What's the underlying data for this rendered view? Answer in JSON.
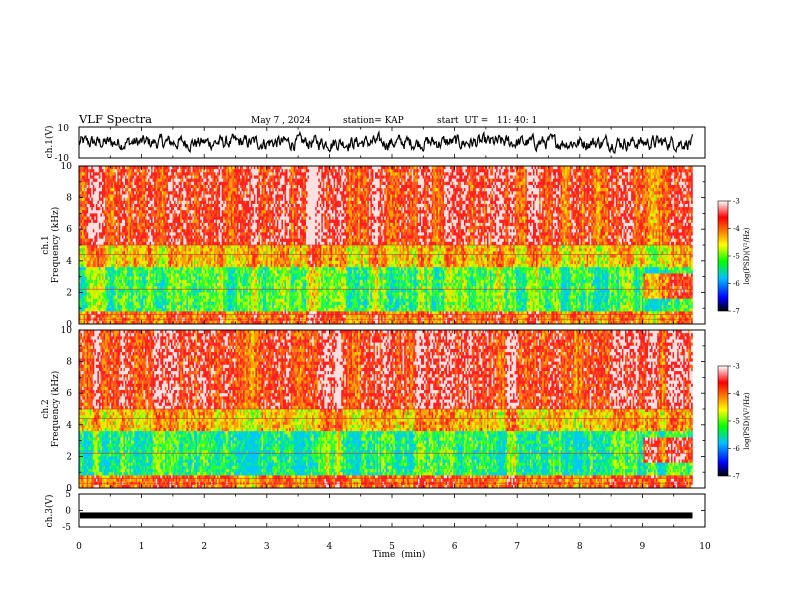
{
  "header": {
    "title": "VLF Spectra",
    "date": "May 7 , 2024",
    "station": "station= KAP",
    "start": "start  UT =   11: 40: 1"
  },
  "chart_data": [
    {
      "type": "line",
      "ylabel": "ch.1(V)",
      "ylim": [
        -10,
        10
      ],
      "yticks": [
        "10",
        "-10"
      ],
      "xlim": [
        0,
        10
      ],
      "description_series": "noisy waveform oscillating roughly between -6 and 6 V over 0–9.8 min"
    },
    {
      "type": "heatmap",
      "ylabel": "ch.1\nFrequency  (kHz)",
      "ylabel_line1": "ch.1",
      "ylabel_line2": "Frequency  (kHz)",
      "ylim": [
        0,
        10
      ],
      "yticks": [
        "0",
        "2",
        "4",
        "6",
        "8",
        "10"
      ],
      "xlim": [
        0,
        10
      ],
      "data_end_min": 9.8,
      "colorbar": {
        "label": "log(PSD)(V²/Hz)",
        "range": [
          -7,
          -3
        ],
        "ticks": [
          "-3",
          "-4",
          "-5",
          "-6",
          "-7"
        ],
        "colors": [
          "#000000",
          "#0000ff",
          "#00c0ff",
          "#00ff00",
          "#ffff00",
          "#ff8000",
          "#ff0000",
          "#ffffff"
        ]
      }
    },
    {
      "type": "heatmap",
      "ylabel_line1": "ch.2",
      "ylabel_line2": "Frequency  (kHz)",
      "ylim": [
        0,
        10
      ],
      "yticks": [
        "0",
        "2",
        "4",
        "6",
        "8",
        "10"
      ],
      "xlim": [
        0,
        10
      ],
      "data_end_min": 9.8,
      "colorbar": {
        "label": "log(PSD)(V²/Hz)",
        "range": [
          -7,
          -3
        ],
        "ticks": [
          "-3",
          "-4",
          "-5",
          "-6",
          "-7"
        ]
      }
    },
    {
      "type": "line",
      "ylabel": "ch.3(V)",
      "ylim": [
        -5,
        5
      ],
      "yticks": [
        "5",
        "0",
        "-5"
      ],
      "xlim": [
        0,
        10
      ],
      "xlabel": "Time  (min)",
      "xticks": [
        "0",
        "1",
        "2",
        "3",
        "4",
        "5",
        "6",
        "7",
        "8",
        "9",
        "10"
      ],
      "constant_value": -1.5
    }
  ]
}
